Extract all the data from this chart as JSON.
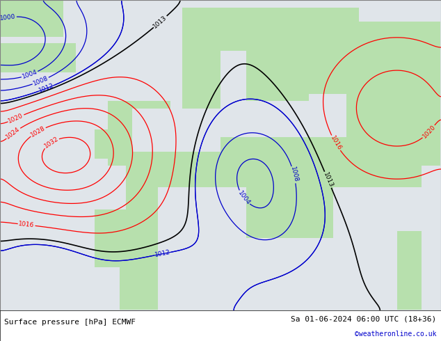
{
  "title_left": "Surface pressure [hPa] ECMWF",
  "title_right": "Sa 01-06-2024 06:00 UTC (18+36)",
  "copyright": "©weatheronline.co.uk",
  "land_color": [
    0.72,
    0.88,
    0.68,
    1.0
  ],
  "sea_color": [
    0.88,
    0.9,
    0.92,
    1.0
  ],
  "outer_color": [
    0.75,
    0.75,
    0.75,
    1.0
  ],
  "contour_red": "#ff0000",
  "contour_blue": "#0000cc",
  "contour_black": "#000000",
  "footer_fontsize": 8,
  "copyright_fontsize": 7,
  "copyright_color": "#0000cc",
  "label_fontsize": 6.5,
  "lon_min": -25,
  "lon_max": 45,
  "lat_min": 30,
  "lat_max": 73
}
